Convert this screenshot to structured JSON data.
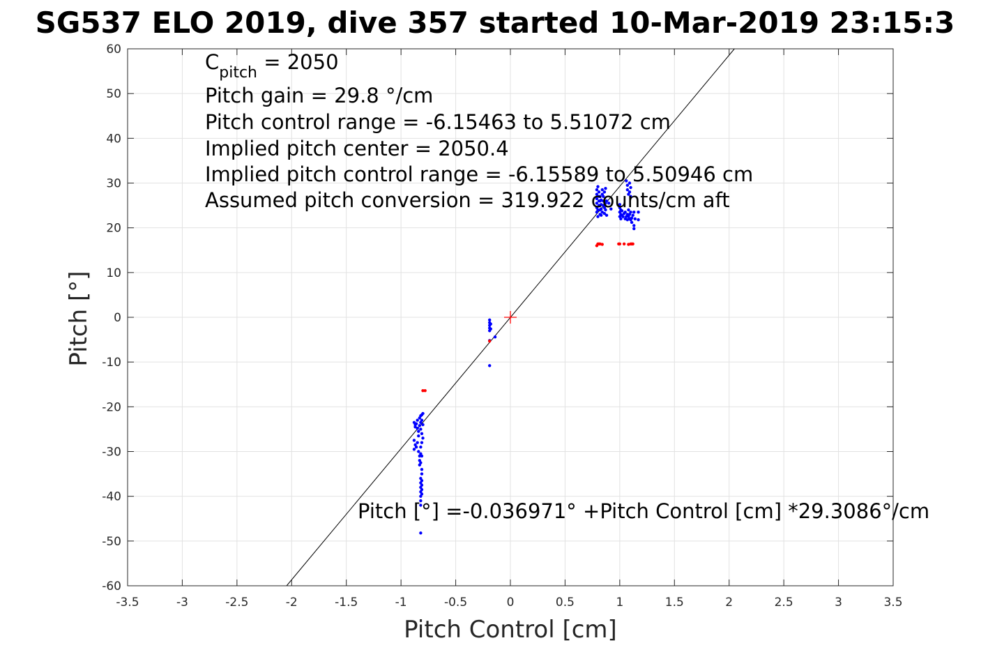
{
  "chart_data": {
    "type": "scatter",
    "title": "SG537 ELO 2019, dive 357 started 10-Mar-2019 23:15:3",
    "xlabel": "Pitch Control [cm]",
    "ylabel": "Pitch [°]",
    "xlim": [
      -3.5,
      3.5
    ],
    "ylim": [
      -60,
      60
    ],
    "grid": true,
    "x_ticks": [
      -3.5,
      -3,
      -2.5,
      -2,
      -1.5,
      -1,
      -0.5,
      0,
      0.5,
      1,
      1.5,
      2,
      2.5,
      3,
      3.5
    ],
    "y_ticks": [
      -60,
      -50,
      -40,
      -30,
      -20,
      -10,
      0,
      10,
      20,
      30,
      40,
      50,
      60
    ],
    "x_tick_labels": [
      "-3.5",
      "-3",
      "-2.5",
      "-2",
      "-1.5",
      "-1",
      "-0.5",
      "0",
      "0.5",
      "1",
      "1.5",
      "2",
      "2.5",
      "3",
      "3.5"
    ],
    "y_tick_labels": [
      "-60",
      "-50",
      "-40",
      "-30",
      "-20",
      "-10",
      "0",
      "10",
      "20",
      "30",
      "40",
      "50",
      "60"
    ],
    "annotations": {
      "c_pitch_symbol": "C",
      "c_pitch_sub": "pitch",
      "c_pitch_value": " = 2050",
      "gain": "Pitch gain = 29.8 °/cm",
      "control_range": "Pitch control range = -6.15463 to 5.51072 cm",
      "implied_center": "Implied pitch center = 2050.4",
      "implied_range": "Implied pitch control range = -6.15589 to 5.50946 cm",
      "conversion": "Assumed pitch conversion = 319.922 counts/cm aft",
      "fit_equation": "Pitch [°] =-0.036971° +Pitch Control [cm] *29.3086°/cm"
    },
    "fit_line": {
      "intercept": -0.036971,
      "slope": 29.3086,
      "color": "#000000"
    },
    "center_marker": {
      "x": 0,
      "y": 0,
      "color": "#ff0000"
    },
    "series": [
      {
        "color": "#0000ff",
        "points": [
          [
            -0.88,
            -23.5
          ],
          [
            -0.87,
            -24
          ],
          [
            -0.87,
            -24.5
          ],
          [
            -0.86,
            -23.8
          ],
          [
            -0.85,
            -24.8
          ],
          [
            -0.84,
            -25.5
          ],
          [
            -0.85,
            -23
          ],
          [
            -0.83,
            -22.5
          ],
          [
            -0.82,
            -22
          ],
          [
            -0.81,
            -21.8
          ],
          [
            -0.8,
            -21.5
          ],
          [
            -0.81,
            -23
          ],
          [
            -0.8,
            -24
          ],
          [
            -0.82,
            -25
          ],
          [
            -0.81,
            -26
          ],
          [
            -0.8,
            -27
          ],
          [
            -0.82,
            -23.5
          ],
          [
            -0.83,
            -24.2
          ],
          [
            -0.84,
            -26.5
          ],
          [
            -0.88,
            -27.5
          ],
          [
            -0.87,
            -28.5
          ],
          [
            -0.88,
            -29.5
          ],
          [
            -0.86,
            -29
          ],
          [
            -0.85,
            -28
          ],
          [
            -0.84,
            -30
          ],
          [
            -0.83,
            -31
          ],
          [
            -0.83,
            -32
          ],
          [
            -0.83,
            -33
          ],
          [
            -0.82,
            -29
          ],
          [
            -0.82,
            -30.5
          ],
          [
            -0.82,
            -32.5
          ],
          [
            -0.81,
            -28
          ],
          [
            -0.81,
            -31
          ],
          [
            -0.81,
            -34
          ],
          [
            -0.81,
            -35
          ],
          [
            -0.82,
            -36
          ],
          [
            -0.82,
            -37
          ],
          [
            -0.82,
            -38
          ],
          [
            -0.82,
            -39
          ],
          [
            -0.82,
            -40
          ],
          [
            -0.82,
            -41
          ],
          [
            -0.81,
            -36.5
          ],
          [
            -0.81,
            -37.5
          ],
          [
            -0.81,
            -38.5
          ],
          [
            -0.81,
            -39.5
          ],
          [
            -0.82,
            -42
          ],
          [
            -0.82,
            -48.2
          ],
          [
            -0.19,
            -0.6
          ],
          [
            -0.19,
            -1.2
          ],
          [
            -0.19,
            -1.8
          ],
          [
            -0.19,
            -2.4
          ],
          [
            -0.19,
            -3.0
          ],
          [
            -0.18,
            -1.5
          ],
          [
            -0.18,
            -2.6
          ],
          [
            -0.19,
            -5.2
          ],
          [
            -0.14,
            -4.4
          ],
          [
            -0.19,
            -10.8
          ],
          [
            0.79,
            23.5
          ],
          [
            0.79,
            24.5
          ],
          [
            0.79,
            25.5
          ],
          [
            0.79,
            26.5
          ],
          [
            0.79,
            27.5
          ],
          [
            0.79,
            28.5
          ],
          [
            0.8,
            29.2
          ],
          [
            0.8,
            24
          ],
          [
            0.81,
            25
          ],
          [
            0.81,
            26
          ],
          [
            0.81,
            27
          ],
          [
            0.81,
            28
          ],
          [
            0.82,
            23
          ],
          [
            0.82,
            24
          ],
          [
            0.82,
            25
          ],
          [
            0.82,
            26
          ],
          [
            0.82,
            27
          ],
          [
            0.83,
            22.8
          ],
          [
            0.83,
            24.2
          ],
          [
            0.83,
            25.2
          ],
          [
            0.83,
            26.2
          ],
          [
            0.84,
            23.5
          ],
          [
            0.84,
            27.5
          ],
          [
            0.85,
            25
          ],
          [
            0.85,
            26
          ],
          [
            0.85,
            27
          ],
          [
            0.86,
            28
          ],
          [
            0.86,
            24.5
          ],
          [
            0.86,
            23.2
          ],
          [
            0.87,
            24
          ],
          [
            0.87,
            25.5
          ],
          [
            0.87,
            28.8
          ],
          [
            0.88,
            26
          ],
          [
            0.88,
            22.8
          ],
          [
            0.9,
            25.5
          ],
          [
            0.92,
            24.2
          ],
          [
            0.8,
            22.5
          ],
          [
            0.84,
            28.5
          ],
          [
            1.0,
            22.5
          ],
          [
            1.0,
            23.5
          ],
          [
            1.0,
            24.5
          ],
          [
            1.0,
            25.2
          ],
          [
            1.01,
            22
          ],
          [
            1.01,
            23
          ],
          [
            1.01,
            24
          ],
          [
            1.02,
            22.8
          ],
          [
            1.02,
            23.8
          ],
          [
            1.03,
            22.5
          ],
          [
            1.04,
            23.2
          ],
          [
            1.05,
            22
          ],
          [
            1.05,
            23.5
          ],
          [
            1.06,
            22.5
          ],
          [
            1.07,
            21.8
          ],
          [
            1.07,
            23
          ],
          [
            1.08,
            22.5
          ],
          [
            1.08,
            24
          ],
          [
            1.09,
            23
          ],
          [
            1.09,
            22
          ],
          [
            1.1,
            21.8
          ],
          [
            1.1,
            23.5
          ],
          [
            1.11,
            22.2
          ],
          [
            1.11,
            21.2
          ],
          [
            1.12,
            22.8
          ],
          [
            1.13,
            23.5
          ],
          [
            1.13,
            20.5
          ],
          [
            1.14,
            22
          ],
          [
            1.13,
            19.8
          ],
          [
            1.17,
            21.8
          ],
          [
            1.17,
            23.5
          ],
          [
            1.06,
            30.5
          ],
          [
            1.07,
            29.5
          ],
          [
            1.07,
            28.5
          ],
          [
            1.08,
            27.5
          ],
          [
            1.09,
            30
          ],
          [
            1.09,
            28
          ],
          [
            1.1,
            27
          ],
          [
            1.1,
            29
          ]
        ]
      },
      {
        "color": "#ff0000",
        "points": [
          [
            -0.8,
            -16.4
          ],
          [
            -0.78,
            -16.4
          ],
          [
            -0.19,
            -5.3
          ],
          [
            0.79,
            16.0
          ],
          [
            0.8,
            16.4
          ],
          [
            0.81,
            16.4
          ],
          [
            0.82,
            16.4
          ],
          [
            0.84,
            16.3
          ],
          [
            0.99,
            16.4
          ],
          [
            1.0,
            16.4
          ],
          [
            1.04,
            16.4
          ],
          [
            1.08,
            16.3
          ],
          [
            1.1,
            16.4
          ],
          [
            1.11,
            16.4
          ],
          [
            1.12,
            16.4
          ]
        ]
      }
    ]
  }
}
